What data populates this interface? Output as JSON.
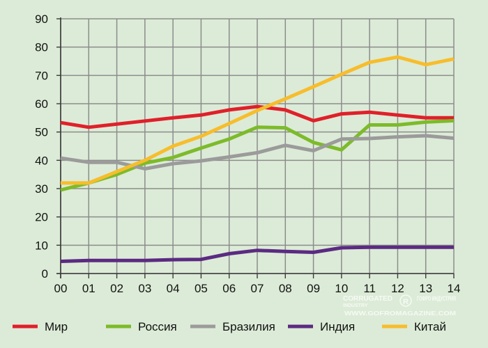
{
  "chart_data": {
    "type": "line",
    "title": "",
    "xlabel": "",
    "ylabel": "",
    "categories": [
      "00",
      "01",
      "02",
      "03",
      "04",
      "05",
      "06",
      "07",
      "08",
      "09",
      "10",
      "11",
      "12",
      "13",
      "14"
    ],
    "y_ticks": [
      "0",
      "10",
      "20",
      "30",
      "40",
      "50",
      "60",
      "70",
      "80",
      "90"
    ],
    "ylim": [
      0,
      90
    ],
    "grid": true,
    "legend_position": "bottom",
    "series": [
      {
        "name": "Мир",
        "color": "#e0202a",
        "values": [
          53.3,
          51.7,
          52.8,
          53.9,
          55.0,
          56.0,
          57.8,
          59.0,
          57.8,
          54.0,
          56.4,
          57.0,
          56.0,
          55.0,
          55.0
        ]
      },
      {
        "name": "Россия",
        "color": "#7dbb2a",
        "values": [
          29.5,
          32.0,
          35.0,
          39.0,
          41.0,
          44.3,
          47.5,
          51.7,
          51.5,
          46.3,
          43.7,
          52.5,
          52.5,
          53.5,
          54.0
        ]
      },
      {
        "name": "Бразилия",
        "color": "#9b9b9b",
        "values": [
          40.8,
          39.3,
          39.3,
          37.0,
          38.8,
          39.8,
          41.2,
          42.7,
          45.3,
          43.4,
          47.5,
          47.7,
          48.3,
          48.7,
          47.8
        ]
      },
      {
        "name": "Индия",
        "color": "#5b2a82",
        "values": [
          4.3,
          4.6,
          4.6,
          4.6,
          4.9,
          5.0,
          7.0,
          8.2,
          7.8,
          7.5,
          9.1,
          9.3,
          9.3,
          9.3,
          9.3
        ]
      },
      {
        "name": "Китай",
        "color": "#f7bd2c",
        "values": [
          32.0,
          32.0,
          36.0,
          40.0,
          45.0,
          48.5,
          53.0,
          57.6,
          61.7,
          66.0,
          70.4,
          74.6,
          76.5,
          73.8,
          75.8
        ]
      }
    ]
  },
  "watermark": {
    "brand_line1": "CORRUGATED",
    "brand_line2": "INDUSTRY",
    "brand_side": "ГОФРО ИНДУСТРИЯ",
    "url": "WWW.GOFROMAGAZINE.COM"
  }
}
